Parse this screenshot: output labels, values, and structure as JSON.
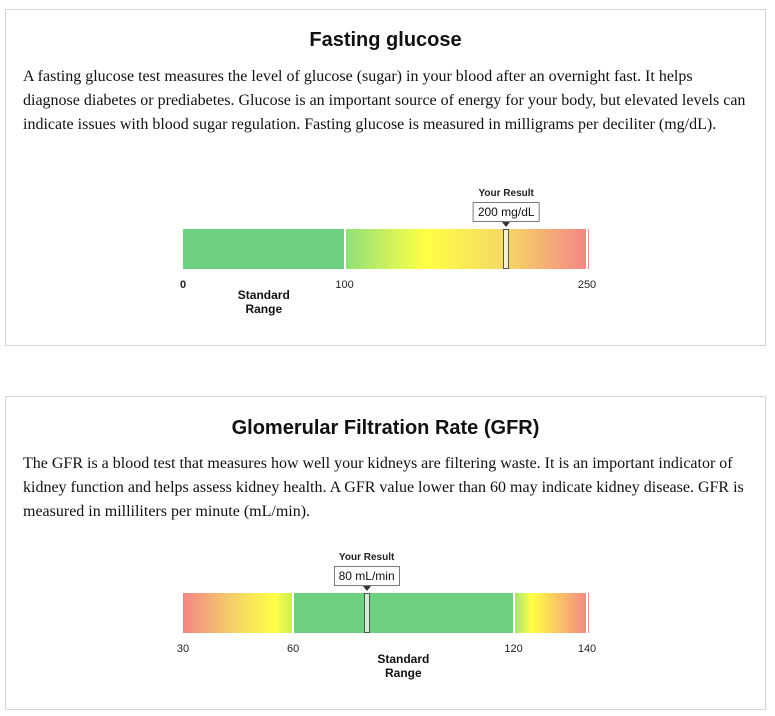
{
  "panels": [
    {
      "title": "Fasting glucose",
      "description": "A fasting glucose test measures the level of glucose (sugar) in your blood after an overnight fast. It helps diagnose diabetes or prediabetes. Glucose is an important source of energy for your body, but elevated levels can indicate issues with blood sugar regulation. Fasting glucose is measured in milligrams per deciliter (mg/dL).",
      "result_heading": "Your Result",
      "result_text": "200 mg/dL",
      "result_value": 200,
      "scale": {
        "min": 0,
        "max": 250
      },
      "ticks": [
        {
          "label": "0",
          "value": 0,
          "bold": true
        },
        {
          "label": "100",
          "value": 100,
          "bold": false
        },
        {
          "label": "250",
          "value": 250,
          "bold": false
        }
      ],
      "standard_range": {
        "from": 0,
        "to": 100,
        "label": "Standard Range"
      },
      "colors": {
        "normal": "#6dd17f",
        "warning": "#ffff44",
        "high": "#f48686"
      },
      "gradient": [
        {
          "value": 0,
          "color": "#6dd17f"
        },
        {
          "value": 100,
          "color": "#6dd17f"
        },
        {
          "value": 100,
          "color": "#8ee07a"
        },
        {
          "value": 150,
          "color": "#ffff44"
        },
        {
          "value": 200,
          "color": "#f5d765"
        },
        {
          "value": 250,
          "color": "#f48686"
        }
      ],
      "dividers": [
        100,
        250
      ]
    },
    {
      "title": "Glomerular Filtration Rate (GFR)",
      "description": "The GFR is a blood test that measures how well your kidneys are filtering waste. It is an important indicator of kidney function and helps assess kidney health. A GFR value lower than 60 may indicate kidney disease. GFR is measured in milliliters per minute (mL/min).",
      "result_heading": "Your Result",
      "result_text": "80 mL/min",
      "result_value": 80,
      "scale": {
        "min": 30,
        "max": 140
      },
      "ticks": [
        {
          "label": "30",
          "value": 30,
          "bold": false
        },
        {
          "label": "60",
          "value": 60,
          "bold": false
        },
        {
          "label": "120",
          "value": 120,
          "bold": false
        },
        {
          "label": "140",
          "value": 140,
          "bold": false
        }
      ],
      "standard_range": {
        "from": 60,
        "to": 120,
        "label": "Standard Range"
      },
      "colors": {
        "normal": "#6dd17f",
        "warning": "#ffff44",
        "high": "#f48686"
      },
      "gradient": [
        {
          "value": 30,
          "color": "#f48686"
        },
        {
          "value": 45,
          "color": "#f5d765"
        },
        {
          "value": 55,
          "color": "#ffff44"
        },
        {
          "value": 60,
          "color": "#c8ec5a"
        },
        {
          "value": 60,
          "color": "#6dd17f"
        },
        {
          "value": 120,
          "color": "#6dd17f"
        },
        {
          "value": 120,
          "color": "#9ee37a"
        },
        {
          "value": 125,
          "color": "#ffff44"
        },
        {
          "value": 140,
          "color": "#f48686"
        }
      ],
      "dividers": [
        60,
        120,
        140
      ]
    }
  ]
}
